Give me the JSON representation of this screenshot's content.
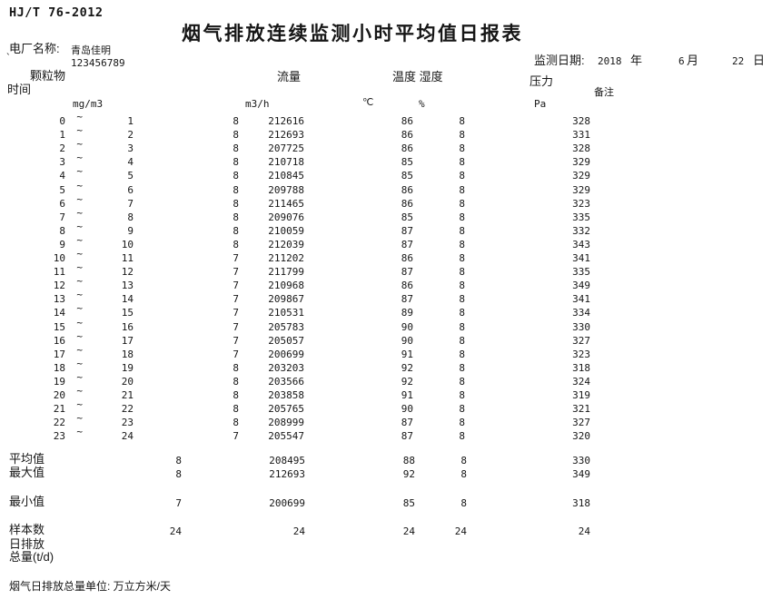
{
  "doc": {
    "standard": "HJ/T 76-2012",
    "title": "烟气排放连续监测小时平均值日报表",
    "plant_label": "电厂名称:",
    "plant_name": "青岛佳明",
    "plant_mark": "`",
    "plant_code": "123456789",
    "date_label": "监测日期:",
    "date_year": "2018",
    "year_suffix": "年",
    "date_month": "6",
    "month_suffix": "月",
    "date_day": "22",
    "day_suffix": "日"
  },
  "columns": {
    "time": "时间",
    "particulate": "颗粒物",
    "flow": "流量",
    "temp_humidity": "温度 湿度",
    "pressure": "压力",
    "remark": "备注",
    "unit_particulate": "mg/m3",
    "unit_flow": "m3/h",
    "unit_temp": "℃",
    "unit_humidity": "%",
    "unit_pressure": "Pa"
  },
  "table": {
    "tilde": "~",
    "rows": [
      {
        "start": "0",
        "end": "1",
        "pm": "8",
        "flow": "212616",
        "temp": "86",
        "hum": "8",
        "press": "328"
      },
      {
        "start": "1",
        "end": "2",
        "pm": "8",
        "flow": "212693",
        "temp": "86",
        "hum": "8",
        "press": "331"
      },
      {
        "start": "2",
        "end": "3",
        "pm": "8",
        "flow": "207725",
        "temp": "86",
        "hum": "8",
        "press": "328"
      },
      {
        "start": "3",
        "end": "4",
        "pm": "8",
        "flow": "210718",
        "temp": "85",
        "hum": "8",
        "press": "329"
      },
      {
        "start": "4",
        "end": "5",
        "pm": "8",
        "flow": "210845",
        "temp": "85",
        "hum": "8",
        "press": "329"
      },
      {
        "start": "5",
        "end": "6",
        "pm": "8",
        "flow": "209788",
        "temp": "86",
        "hum": "8",
        "press": "329"
      },
      {
        "start": "6",
        "end": "7",
        "pm": "8",
        "flow": "211465",
        "temp": "86",
        "hum": "8",
        "press": "323"
      },
      {
        "start": "7",
        "end": "8",
        "pm": "8",
        "flow": "209076",
        "temp": "85",
        "hum": "8",
        "press": "335"
      },
      {
        "start": "8",
        "end": "9",
        "pm": "8",
        "flow": "210059",
        "temp": "87",
        "hum": "8",
        "press": "332"
      },
      {
        "start": "9",
        "end": "10",
        "pm": "8",
        "flow": "212039",
        "temp": "87",
        "hum": "8",
        "press": "343"
      },
      {
        "start": "10",
        "end": "11",
        "pm": "7",
        "flow": "211202",
        "temp": "86",
        "hum": "8",
        "press": "341"
      },
      {
        "start": "11",
        "end": "12",
        "pm": "7",
        "flow": "211799",
        "temp": "87",
        "hum": "8",
        "press": "335"
      },
      {
        "start": "12",
        "end": "13",
        "pm": "7",
        "flow": "210968",
        "temp": "86",
        "hum": "8",
        "press": "349"
      },
      {
        "start": "13",
        "end": "14",
        "pm": "7",
        "flow": "209867",
        "temp": "87",
        "hum": "8",
        "press": "341"
      },
      {
        "start": "14",
        "end": "15",
        "pm": "7",
        "flow": "210531",
        "temp": "89",
        "hum": "8",
        "press": "334"
      },
      {
        "start": "15",
        "end": "16",
        "pm": "7",
        "flow": "205783",
        "temp": "90",
        "hum": "8",
        "press": "330"
      },
      {
        "start": "16",
        "end": "17",
        "pm": "7",
        "flow": "205057",
        "temp": "90",
        "hum": "8",
        "press": "327"
      },
      {
        "start": "17",
        "end": "18",
        "pm": "7",
        "flow": "200699",
        "temp": "91",
        "hum": "8",
        "press": "323"
      },
      {
        "start": "18",
        "end": "19",
        "pm": "8",
        "flow": "203203",
        "temp": "92",
        "hum": "8",
        "press": "318"
      },
      {
        "start": "19",
        "end": "20",
        "pm": "8",
        "flow": "203566",
        "temp": "92",
        "hum": "8",
        "press": "324"
      },
      {
        "start": "20",
        "end": "21",
        "pm": "8",
        "flow": "203858",
        "temp": "91",
        "hum": "8",
        "press": "319"
      },
      {
        "start": "21",
        "end": "22",
        "pm": "8",
        "flow": "205765",
        "temp": "90",
        "hum": "8",
        "press": "321"
      },
      {
        "start": "22",
        "end": "23",
        "pm": "8",
        "flow": "208999",
        "temp": "87",
        "hum": "8",
        "press": "327"
      },
      {
        "start": "23",
        "end": "24",
        "pm": "7",
        "flow": "205547",
        "temp": "87",
        "hum": "8",
        "press": "320"
      }
    ]
  },
  "summary": {
    "rows": [
      {
        "label": "平均值",
        "pm": "8",
        "flow": "208495",
        "temp": "88",
        "hum": "8",
        "press": "330"
      },
      {
        "label": "最大值",
        "pm": "8",
        "flow": "212693",
        "temp": "92",
        "hum": "8",
        "press": "349"
      },
      {
        "label": "最小值",
        "pm": "7",
        "flow": "200699",
        "temp": "85",
        "hum": "8",
        "press": "318"
      },
      {
        "label": "样本数",
        "pm": "24",
        "flow": "24",
        "temp": "24",
        "hum": "24",
        "press": "24"
      }
    ],
    "daily_emission_line1": "日排放",
    "daily_emission_line2": "总量(t/d)"
  },
  "footer": {
    "note": "烟气日排放总量单位: 万立方米/天"
  }
}
